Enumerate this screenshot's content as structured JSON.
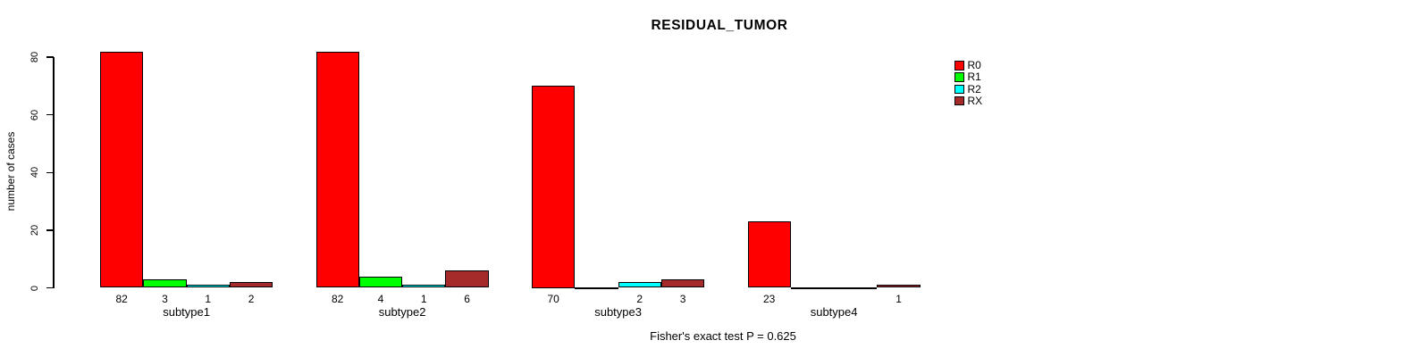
{
  "chart_data": {
    "type": "bar",
    "grouped": true,
    "title": "RESIDUAL_TUMOR",
    "xlabel": "",
    "ylabel": "number of cases",
    "annotation": "Fisher's exact test P = 0.625",
    "categories": [
      "subtype1",
      "subtype2",
      "subtype3",
      "subtype4"
    ],
    "series": [
      {
        "name": "R0",
        "color": "#FF0000",
        "values": [
          82,
          82,
          70,
          23
        ]
      },
      {
        "name": "R1",
        "color": "#00FF00",
        "values": [
          3,
          4,
          0,
          0
        ]
      },
      {
        "name": "R2",
        "color": "#00FFFF",
        "values": [
          1,
          1,
          2,
          0
        ]
      },
      {
        "name": "RX",
        "color": "#A52A2A",
        "values": [
          2,
          6,
          3,
          1
        ]
      }
    ],
    "legend": [
      "R0",
      "R1",
      "R2",
      "RX"
    ],
    "legend_position": "right-of-plot",
    "yticks": [
      0,
      20,
      40,
      60,
      80
    ],
    "ylim": [
      0,
      86
    ],
    "grid": false,
    "value_labels_shown": true,
    "zero_value_labels_hidden": true,
    "axis_color": "#000000",
    "background_color": "#FFFFFF"
  }
}
